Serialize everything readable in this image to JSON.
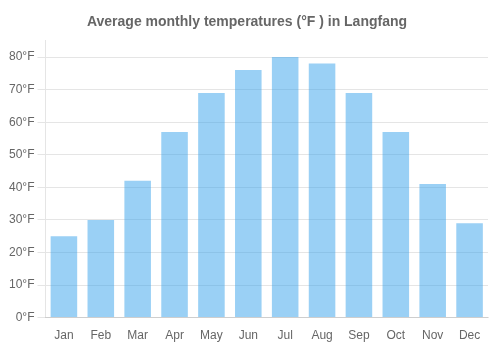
{
  "chart_data": {
    "type": "bar",
    "title": "Average monthly temperatures (°F ) in Langfang",
    "categories": [
      "Jan",
      "Feb",
      "Mar",
      "Apr",
      "May",
      "Jun",
      "Jul",
      "Aug",
      "Sep",
      "Oct",
      "Nov",
      "Dec"
    ],
    "values": [
      25,
      30,
      42,
      57,
      69,
      76,
      80,
      78,
      69,
      57,
      41,
      29
    ],
    "ylim": [
      0,
      85
    ],
    "yticks": [
      {
        "value": 0,
        "label": "0°F"
      },
      {
        "value": 10,
        "label": "10°F"
      },
      {
        "value": 20,
        "label": "20°F"
      },
      {
        "value": 30,
        "label": "30°F"
      },
      {
        "value": 40,
        "label": "40°F"
      },
      {
        "value": 50,
        "label": "50°F"
      },
      {
        "value": 60,
        "label": "60°F"
      },
      {
        "value": 70,
        "label": "70°F"
      },
      {
        "value": 80,
        "label": "80°F"
      }
    ],
    "grid": true
  }
}
